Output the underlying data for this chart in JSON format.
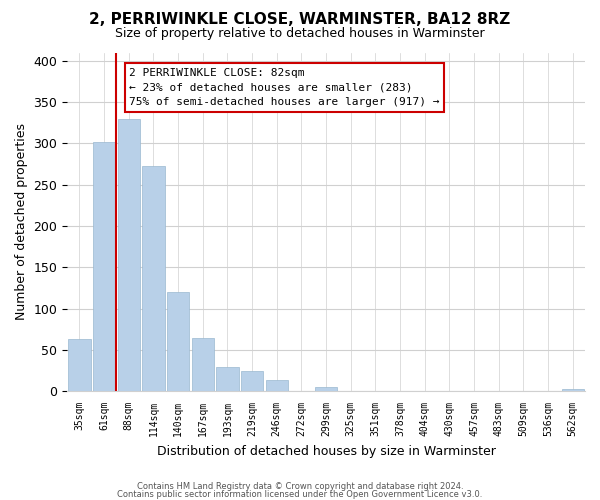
{
  "title": "2, PERRIWINKLE CLOSE, WARMINSTER, BA12 8RZ",
  "subtitle": "Size of property relative to detached houses in Warminster",
  "xlabel": "Distribution of detached houses by size in Warminster",
  "ylabel": "Number of detached properties",
  "categories": [
    "35sqm",
    "61sqm",
    "88sqm",
    "114sqm",
    "140sqm",
    "167sqm",
    "193sqm",
    "219sqm",
    "246sqm",
    "272sqm",
    "299sqm",
    "325sqm",
    "351sqm",
    "378sqm",
    "404sqm",
    "430sqm",
    "457sqm",
    "483sqm",
    "509sqm",
    "536sqm",
    "562sqm"
  ],
  "values": [
    63,
    302,
    330,
    272,
    120,
    64,
    29,
    25,
    13,
    0,
    5,
    0,
    0,
    0,
    0,
    0,
    0,
    0,
    0,
    0,
    3
  ],
  "bar_color": "#b8d0e8",
  "bar_edge_color": "#9ab8d0",
  "property_line_color": "#cc0000",
  "annotation_title": "2 PERRIWINKLE CLOSE: 82sqm",
  "annotation_line1": "← 23% of detached houses are smaller (283)",
  "annotation_line2": "75% of semi-detached houses are larger (917) →",
  "annotation_box_color": "#ffffff",
  "annotation_box_edge": "#cc0000",
  "ylim": [
    0,
    410
  ],
  "yticks": [
    0,
    50,
    100,
    150,
    200,
    250,
    300,
    350,
    400
  ],
  "footer1": "Contains HM Land Registry data © Crown copyright and database right 2024.",
  "footer2": "Contains public sector information licensed under the Open Government Licence v3.0.",
  "background_color": "#ffffff",
  "grid_color": "#d0d0d0",
  "title_fontsize": 11,
  "subtitle_fontsize": 9
}
